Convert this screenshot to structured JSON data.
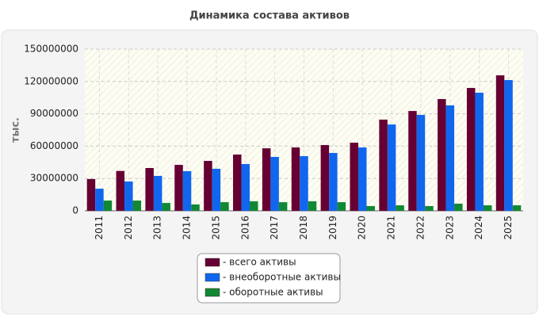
{
  "chart_data": {
    "type": "bar",
    "title": "Динамика состава активов",
    "y_label": "тыс.",
    "categories": [
      "2011",
      "2012",
      "2013",
      "2014",
      "2015",
      "2016",
      "2017",
      "2018",
      "2019",
      "2020",
      "2021",
      "2022",
      "2023",
      "2024",
      "2025"
    ],
    "series": [
      {
        "name": "- всего активы",
        "color": "#660033",
        "values": [
          29500000,
          37000000,
          39700000,
          42600000,
          46300000,
          52200000,
          58000000,
          58800000,
          61000000,
          63200000,
          84600000,
          92600000,
          103700000,
          114000000,
          125700000
        ]
      },
      {
        "name": "- внеоборотные активы",
        "color": "#1166ee",
        "values": [
          20500000,
          27200000,
          32400000,
          36800000,
          39000000,
          43400000,
          50000000,
          50700000,
          53700000,
          58800000,
          80100000,
          89000000,
          97800000,
          109600000,
          121300000
        ]
      },
      {
        "name": "- оборотные активы",
        "color": "#118833",
        "values": [
          9500000,
          9500000,
          7300000,
          5900000,
          8000000,
          8800000,
          8000000,
          8800000,
          8000000,
          4400000,
          5100000,
          4400000,
          6600000,
          5100000,
          5100000
        ]
      }
    ],
    "ylim": [
      0,
      150000000
    ],
    "yticks": [
      0,
      30000000,
      60000000,
      90000000,
      120000000,
      150000000
    ],
    "grid": true
  }
}
